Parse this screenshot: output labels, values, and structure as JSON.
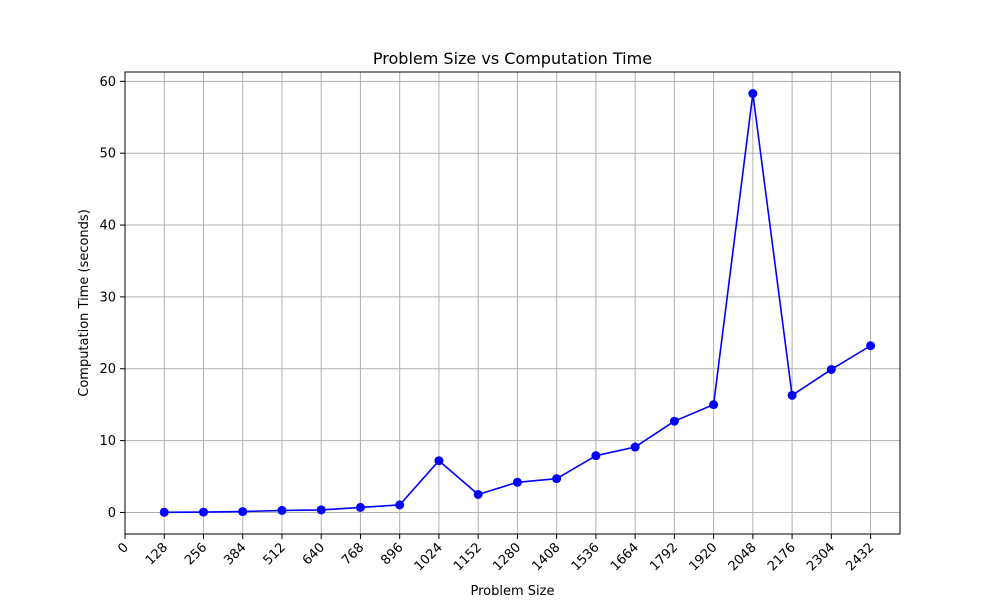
{
  "chart_data": {
    "type": "line",
    "title": "Problem Size vs Computation Time",
    "xlabel": "Problem Size",
    "ylabel": "Computation Time (seconds)",
    "xlim": [
      0,
      2528
    ],
    "ylim": [
      -3,
      61.3
    ],
    "x_ticks": [
      0,
      128,
      256,
      384,
      512,
      640,
      768,
      896,
      1024,
      1152,
      1280,
      1408,
      1536,
      1664,
      1792,
      1920,
      2048,
      2176,
      2304,
      2432
    ],
    "y_ticks": [
      0,
      10,
      20,
      30,
      40,
      50,
      60
    ],
    "grid": true,
    "series": [
      {
        "color": "#0000ff",
        "marker": "circle",
        "points": [
          {
            "x": 128,
            "y": 0.02
          },
          {
            "x": 256,
            "y": 0.05
          },
          {
            "x": 384,
            "y": 0.12
          },
          {
            "x": 512,
            "y": 0.28
          },
          {
            "x": 640,
            "y": 0.35
          },
          {
            "x": 768,
            "y": 0.7
          },
          {
            "x": 896,
            "y": 1.05
          },
          {
            "x": 1024,
            "y": 7.2
          },
          {
            "x": 1152,
            "y": 2.5
          },
          {
            "x": 1280,
            "y": 4.2
          },
          {
            "x": 1408,
            "y": 4.7
          },
          {
            "x": 1536,
            "y": 7.9
          },
          {
            "x": 1664,
            "y": 9.1
          },
          {
            "x": 1792,
            "y": 12.7
          },
          {
            "x": 1920,
            "y": 15.0
          },
          {
            "x": 2048,
            "y": 58.3
          },
          {
            "x": 2176,
            "y": 16.3
          },
          {
            "x": 2304,
            "y": 19.9
          },
          {
            "x": 2432,
            "y": 23.2
          }
        ]
      }
    ]
  }
}
